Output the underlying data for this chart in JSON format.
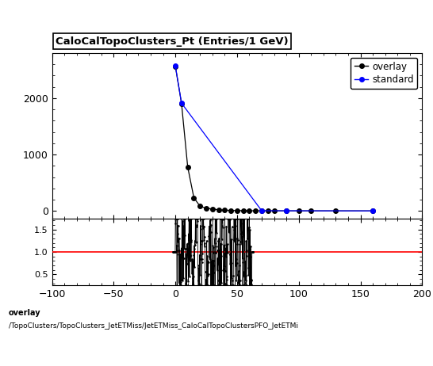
{
  "title": "CaloCalTopoClusters_Pt (Entries/1 GeV)",
  "xlim": [
    -100,
    200
  ],
  "ylim_main": [
    -130,
    2800
  ],
  "ylim_ratio": [
    0.25,
    1.75
  ],
  "ratio_yticks": [
    0.5,
    1.0,
    1.5
  ],
  "main_yticks": [
    0,
    1000,
    2000
  ],
  "overlay_label": "overlay",
  "standard_label": "standard",
  "overlay_color": "#000000",
  "standard_color": "#0000ff",
  "ratio_line_color": "#ff0000",
  "footer_line1": "overlay",
  "footer_line2": "/TopoClusters/TopoClusters_JetETMiss/JetETMiss_CaloCalTopoClustersPFO_JetETMi",
  "ov_main_x": [
    0,
    5,
    10,
    15,
    20,
    25,
    30,
    35,
    40,
    45,
    50,
    55,
    60,
    65,
    70,
    75,
    80,
    90,
    100,
    110,
    130,
    160
  ],
  "ov_main_y": [
    2565,
    1905,
    780,
    235,
    85,
    50,
    35,
    22,
    15,
    10,
    8,
    6,
    5,
    4,
    4,
    3,
    3,
    2,
    2,
    2,
    2,
    2
  ],
  "std_main_x": [
    0,
    5,
    70,
    90,
    160
  ],
  "std_main_y": [
    2572,
    1912,
    4,
    4,
    2
  ],
  "ratio_spike_x_start": 0,
  "ratio_spike_x_end": 62,
  "ratio_vlines": [
    28,
    32,
    36,
    40,
    44,
    48,
    52,
    56,
    60
  ]
}
